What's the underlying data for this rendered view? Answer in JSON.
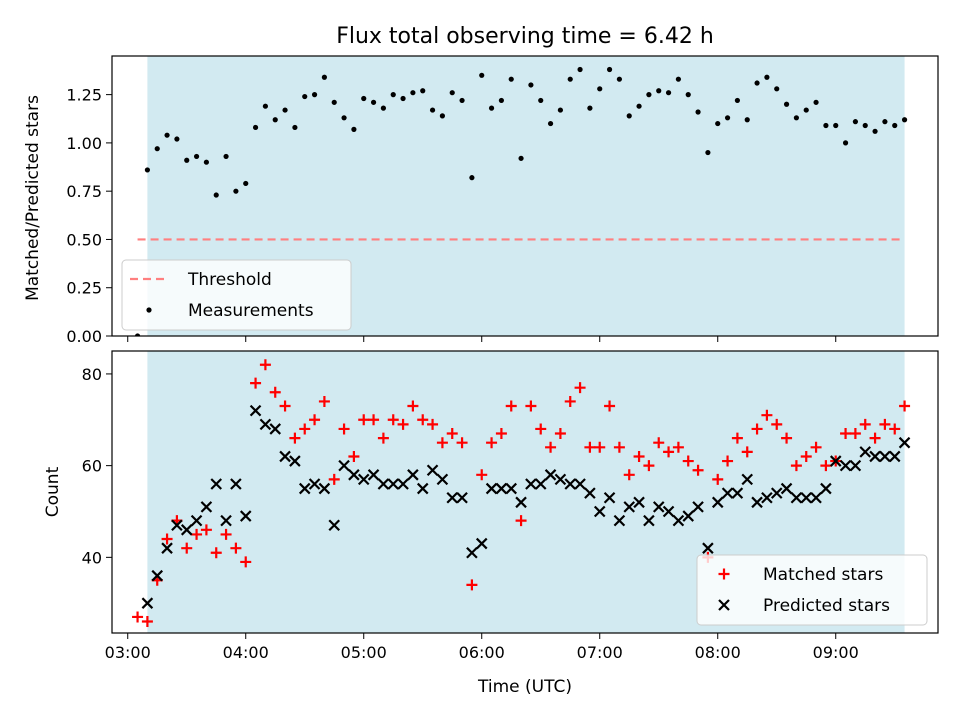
{
  "chart_data": [
    {
      "type": "scatter",
      "title": "Flux total observing time = 6.42 h",
      "xlabel": "",
      "ylabel": "Matched/Predicted stars",
      "xlim": [
        "02:52",
        "09:52"
      ],
      "ylim": [
        0,
        1.45
      ],
      "yticks": [
        "0.00",
        "0.25",
        "0.50",
        "0.75",
        "1.00",
        "1.25"
      ],
      "shaded_span": [
        "03:10",
        "09:35"
      ],
      "shade_color": "#add8e6",
      "legend_position": "lower-left",
      "threshold": {
        "name": "Threshold",
        "value": 0.5,
        "x": [
          "03:05",
          "09:35"
        ],
        "color": "#ff7f7f",
        "style": "dashed"
      },
      "series": [
        {
          "name": "Measurements",
          "color": "#000000",
          "marker": "dot",
          "x": [
            "03:05",
            "03:10",
            "03:15",
            "03:20",
            "03:25",
            "03:30",
            "03:35",
            "03:40",
            "03:45",
            "03:50",
            "03:55",
            "04:00",
            "04:05",
            "04:10",
            "04:15",
            "04:20",
            "04:25",
            "04:30",
            "04:35",
            "04:40",
            "04:45",
            "04:50",
            "04:55",
            "05:00",
            "05:05",
            "05:10",
            "05:15",
            "05:20",
            "05:25",
            "05:30",
            "05:35",
            "05:40",
            "05:45",
            "05:50",
            "05:55",
            "06:00",
            "06:05",
            "06:10",
            "06:15",
            "06:20",
            "06:25",
            "06:30",
            "06:35",
            "06:40",
            "06:45",
            "06:50",
            "06:55",
            "07:00",
            "07:05",
            "07:10",
            "07:15",
            "07:20",
            "07:25",
            "07:30",
            "07:35",
            "07:40",
            "07:45",
            "07:50",
            "07:55",
            "08:00",
            "08:05",
            "08:10",
            "08:15",
            "08:20",
            "08:25",
            "08:30",
            "08:35",
            "08:40",
            "08:45",
            "08:50",
            "08:55",
            "09:00",
            "09:05",
            "09:10",
            "09:15",
            "09:20",
            "09:25",
            "09:30",
            "09:35"
          ],
          "values": [
            0.0,
            0.86,
            0.97,
            1.04,
            1.02,
            0.91,
            0.93,
            0.9,
            0.73,
            0.93,
            0.75,
            0.79,
            1.08,
            1.19,
            1.12,
            1.17,
            1.08,
            1.24,
            1.25,
            1.34,
            1.21,
            1.13,
            1.07,
            1.23,
            1.21,
            1.18,
            1.25,
            1.23,
            1.26,
            1.27,
            1.17,
            1.14,
            1.26,
            1.22,
            0.82,
            1.35,
            1.18,
            1.22,
            1.33,
            0.92,
            1.3,
            1.22,
            1.1,
            1.17,
            1.33,
            1.38,
            1.18,
            1.28,
            1.38,
            1.33,
            1.14,
            1.19,
            1.25,
            1.27,
            1.26,
            1.33,
            1.25,
            1.16,
            0.95,
            1.1,
            1.13,
            1.22,
            1.12,
            1.31,
            1.34,
            1.28,
            1.2,
            1.13,
            1.17,
            1.21,
            1.09,
            1.09,
            1.0,
            1.11,
            1.09,
            1.06,
            1.11,
            1.09,
            1.12
          ]
        }
      ]
    },
    {
      "type": "scatter",
      "title": "",
      "xlabel": "Time (UTC)",
      "ylabel": "Count",
      "xlim": [
        "02:52",
        "09:52"
      ],
      "ylim": [
        23.5,
        85
      ],
      "yticks": [
        "40",
        "60",
        "80"
      ],
      "xticks": [
        "03:00",
        "04:00",
        "05:00",
        "06:00",
        "07:00",
        "08:00",
        "09:00"
      ],
      "shaded_span": [
        "03:10",
        "09:35"
      ],
      "shade_color": "#add8e6",
      "legend_position": "lower-right",
      "series": [
        {
          "name": "Matched stars",
          "color": "#ff0000",
          "marker": "plus",
          "x": [
            "03:05",
            "03:10",
            "03:15",
            "03:20",
            "03:25",
            "03:30",
            "03:35",
            "03:40",
            "03:45",
            "03:50",
            "03:55",
            "04:00",
            "04:05",
            "04:10",
            "04:15",
            "04:20",
            "04:25",
            "04:30",
            "04:35",
            "04:40",
            "04:45",
            "04:50",
            "04:55",
            "05:00",
            "05:05",
            "05:10",
            "05:15",
            "05:20",
            "05:25",
            "05:30",
            "05:35",
            "05:40",
            "05:45",
            "05:50",
            "05:55",
            "06:00",
            "06:05",
            "06:10",
            "06:15",
            "06:20",
            "06:25",
            "06:30",
            "06:35",
            "06:40",
            "06:45",
            "06:50",
            "06:55",
            "07:00",
            "07:05",
            "07:10",
            "07:15",
            "07:20",
            "07:25",
            "07:30",
            "07:35",
            "07:40",
            "07:45",
            "07:50",
            "07:55",
            "08:00",
            "08:05",
            "08:10",
            "08:15",
            "08:20",
            "08:25",
            "08:30",
            "08:35",
            "08:40",
            "08:45",
            "08:50",
            "08:55",
            "09:00",
            "09:05",
            "09:10",
            "09:15",
            "09:20",
            "09:25",
            "09:30",
            "09:35"
          ],
          "values": [
            27,
            26,
            35,
            44,
            48,
            42,
            45,
            46,
            41,
            45,
            42,
            39,
            78,
            82,
            76,
            73,
            66,
            68,
            70,
            74,
            57,
            68,
            62,
            70,
            70,
            66,
            70,
            69,
            73,
            70,
            69,
            65,
            67,
            65,
            34,
            58,
            65,
            67,
            73,
            48,
            73,
            68,
            64,
            67,
            74,
            77,
            64,
            64,
            73,
            64,
            58,
            62,
            60,
            65,
            63,
            64,
            61,
            59,
            40,
            57,
            61,
            66,
            63,
            68,
            71,
            69,
            66,
            60,
            62,
            64,
            60,
            61,
            67,
            67,
            69,
            66,
            69,
            68,
            73
          ]
        },
        {
          "name": "Predicted stars",
          "color": "#000000",
          "marker": "x",
          "x": [
            "03:05",
            "03:10",
            "03:15",
            "03:20",
            "03:25",
            "03:30",
            "03:35",
            "03:40",
            "03:45",
            "03:50",
            "03:55",
            "04:00",
            "04:05",
            "04:10",
            "04:15",
            "04:20",
            "04:25",
            "04:30",
            "04:35",
            "04:40",
            "04:45",
            "04:50",
            "04:55",
            "05:00",
            "05:05",
            "05:10",
            "05:15",
            "05:20",
            "05:25",
            "05:30",
            "05:35",
            "05:40",
            "05:45",
            "05:50",
            "05:55",
            "06:00",
            "06:05",
            "06:10",
            "06:15",
            "06:20",
            "06:25",
            "06:30",
            "06:35",
            "06:40",
            "06:45",
            "06:50",
            "06:55",
            "07:00",
            "07:05",
            "07:10",
            "07:15",
            "07:20",
            "07:25",
            "07:30",
            "07:35",
            "07:40",
            "07:45",
            "07:50",
            "07:55",
            "08:00",
            "08:05",
            "08:10",
            "08:15",
            "08:20",
            "08:25",
            "08:30",
            "08:35",
            "08:40",
            "08:45",
            "08:50",
            "08:55",
            "09:00",
            "09:05",
            "09:10",
            "09:15",
            "09:20",
            "09:25",
            "09:30",
            "09:35"
          ],
          "values": [
            null,
            30,
            36,
            42,
            47,
            46,
            48,
            51,
            56,
            48,
            56,
            49,
            72,
            69,
            68,
            62,
            61,
            55,
            56,
            55,
            47,
            60,
            58,
            57,
            58,
            56,
            56,
            56,
            58,
            55,
            59,
            57,
            53,
            53,
            41,
            43,
            55,
            55,
            55,
            52,
            56,
            56,
            58,
            57,
            56,
            56,
            54,
            50,
            53,
            48,
            51,
            52,
            48,
            51,
            50,
            48,
            49,
            51,
            42,
            52,
            54,
            54,
            57,
            52,
            53,
            54,
            55,
            53,
            53,
            53,
            55,
            61,
            60,
            60,
            63,
            62,
            62,
            62,
            65
          ]
        }
      ]
    }
  ]
}
